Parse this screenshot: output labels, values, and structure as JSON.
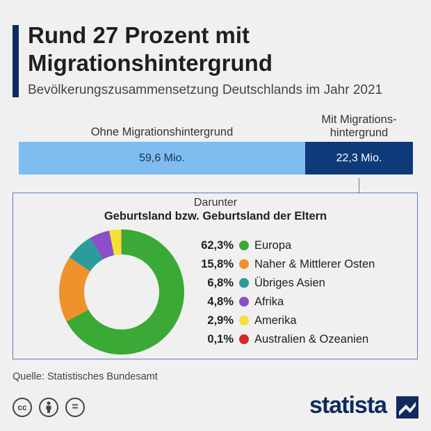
{
  "header": {
    "title": "Rund 27 Prozent mit Migrationshintergrund",
    "subtitle": "Bevölkerungszusammensetzung Deutschlands im Jahr 2021"
  },
  "bar": {
    "ohne_label": "Ohne Migrationshintergrund",
    "ohne_value": "59,6 Mio.",
    "mit_label_line1": "Mit Migrations-",
    "mit_label_line2": "hintergrund",
    "mit_value": "22,3 Mio."
  },
  "breakdown": {
    "heading1": "Darunter",
    "heading2": "Geburtsland bzw. Geburtsland der Eltern"
  },
  "colors": {
    "ohne": "#7fbdf0",
    "mit": "#0e3a7a",
    "europa": "#3aa935",
    "naher_osten": "#f0922b",
    "asien": "#2a9d9a",
    "afrika": "#8a4fc9",
    "amerika": "#f5e033",
    "australien": "#d62a2a"
  },
  "chart_data": [
    {
      "type": "bar",
      "orientation": "horizontal-stacked",
      "categories": [
        "Ohne Migrationshintergrund",
        "Mit Migrationshintergrund"
      ],
      "values": [
        59.6,
        22.3
      ],
      "unit": "Mio."
    },
    {
      "type": "pie",
      "subtype": "donut",
      "title": "Geburtsland bzw. Geburtsland der Eltern",
      "labels": [
        "Europa",
        "Naher & Mittlerer Osten",
        "Übriges Asien",
        "Afrika",
        "Amerika",
        "Australien & Ozeanien"
      ],
      "values": [
        62.3,
        15.8,
        6.8,
        4.8,
        2.9,
        0.1
      ],
      "display": [
        "62,3%",
        "15,8%",
        "6,8%",
        "4,8%",
        "2,9%",
        "0,1%"
      ],
      "colors": [
        "#3aa935",
        "#f0922b",
        "#2a9d9a",
        "#8a4fc9",
        "#f5e033",
        "#d62a2a"
      ]
    }
  ],
  "footer": {
    "source": "Quelle: Statistisches Bundesamt",
    "cc_icons": [
      "cc",
      "by",
      "="
    ],
    "brand": "statista"
  }
}
